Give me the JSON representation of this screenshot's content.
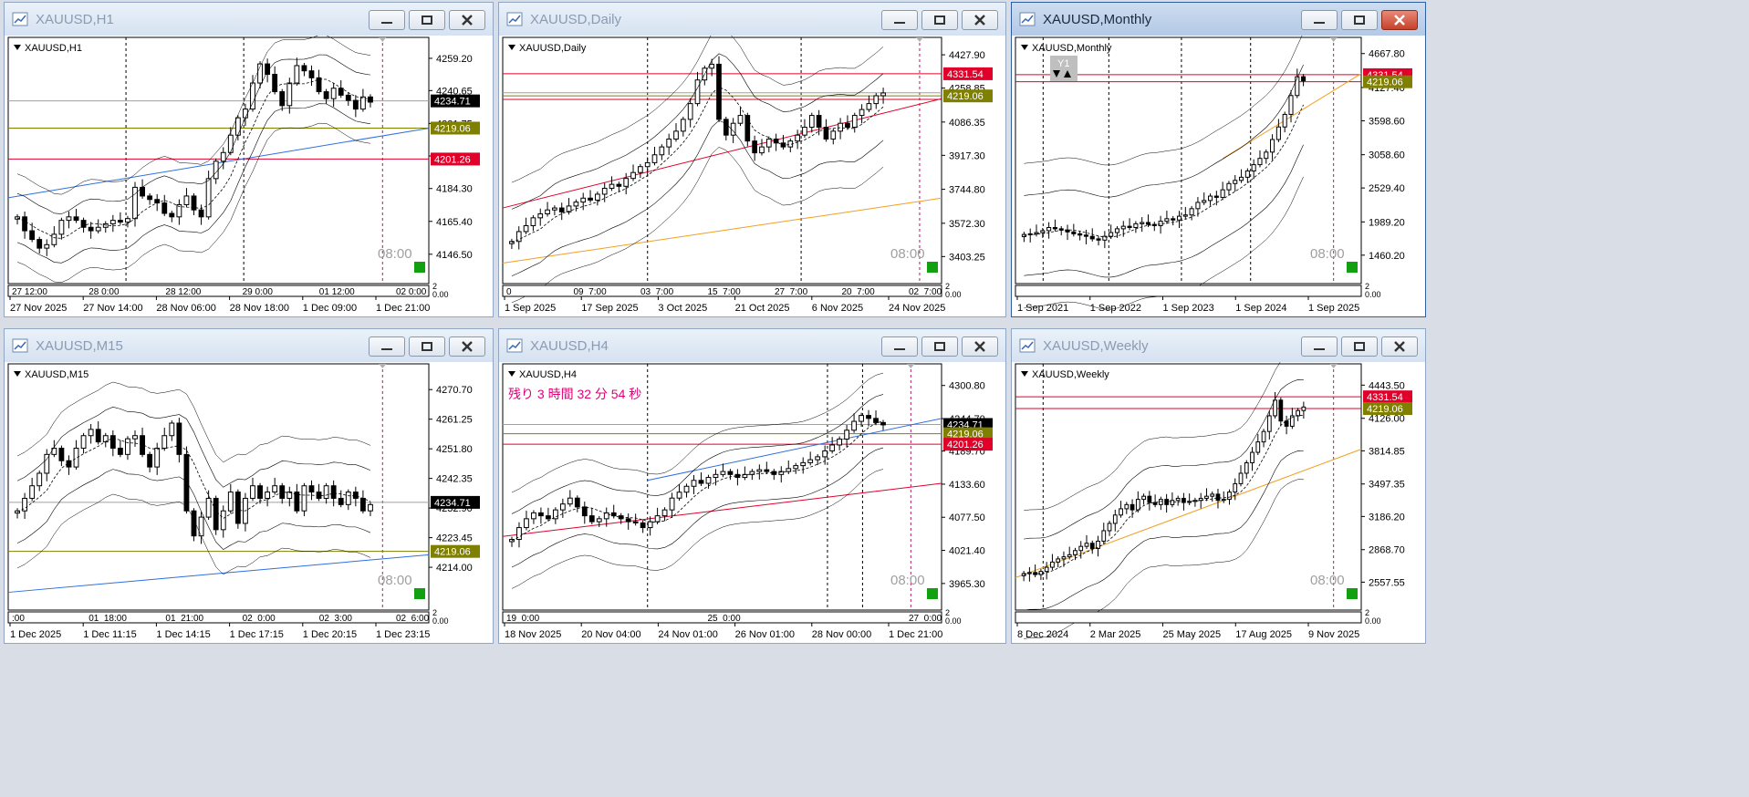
{
  "colors": {
    "bg": "#ffffff",
    "candle": "#000000",
    "support": "#808000",
    "resistance": "#e0002a",
    "trend_blue": "#2f6fe0",
    "trend_orange": "#f0a020",
    "trend_red": "#e0002a",
    "current": "#000000",
    "pink": "#e0007a",
    "accent_green": "#10a010",
    "accent_gray": "#a0a0a0"
  },
  "windows": [
    {
      "key": "h1",
      "title": "XAUUSD,H1",
      "active": false,
      "label": "XAUUSD,H1",
      "ymin": 4138,
      "ymax": 4266,
      "price_labels": [
        "4259.20",
        "4240.65",
        "4221.75",
        "4203.05",
        "4184.30",
        "4165.40",
        "4146.50"
      ],
      "price_ticks": [
        4259.2,
        4240.65,
        4221.75,
        4203.05,
        4184.3,
        4165.4,
        4146.5
      ],
      "markers": [
        {
          "text": "4234.71",
          "value": 4234.71,
          "type": "current"
        },
        {
          "text": "4219.06",
          "value": 4219.06,
          "type": "support"
        },
        {
          "text": "4201.26",
          "value": 4201.26,
          "type": "resistance"
        }
      ],
      "hlines": [
        {
          "value": 4219.06,
          "type": "support"
        },
        {
          "value": 4201.26,
          "type": "resistance"
        },
        {
          "value": 4234.71,
          "type": "gray"
        }
      ],
      "trendlines": [
        {
          "type": "blue",
          "y1": 4179,
          "y2": 4219
        }
      ],
      "bb": {
        "amp": 0.11
      },
      "date_labels": [
        "27 Nov 2025",
        "27 Nov 14:00",
        "28 Nov 06:00",
        "28 Nov 18:00",
        "1 Dec 09:00",
        "1 Dec 21:00"
      ],
      "inner_labels": [
        "27 12:00",
        "28 0:00",
        "28 12:00",
        "29 0:00",
        "01 12:00",
        "02 0:00"
      ],
      "scale_bottom": "0.00",
      "scale_top_small": "2",
      "time_stamp": "08:00",
      "vlines": [
        0.28,
        0.56,
        0.89
      ],
      "path": [
        4168,
        4160,
        4155,
        4150,
        4152,
        4158,
        4166,
        4168,
        4166,
        4162,
        4160,
        4162,
        4164,
        4166,
        4165,
        4167,
        4185,
        4180,
        4178,
        4176,
        4170,
        4168,
        4175,
        4180,
        4172,
        4168,
        4190,
        4200,
        4205,
        4215,
        4225,
        4230,
        4245,
        4256,
        4250,
        4240,
        4232,
        4245,
        4255,
        4252,
        4248,
        4240,
        4236,
        4242,
        4238,
        4235,
        4230,
        4237,
        4234
      ],
      "title_overlay": ""
    },
    {
      "key": "daily",
      "title": "XAUUSD,Daily",
      "active": false,
      "label": "XAUUSD,Daily",
      "ymin": 3340,
      "ymax": 4470,
      "price_labels": [
        "4427.90",
        "4258.85",
        "4086.35",
        "3917.30",
        "3744.80",
        "3572.30",
        "3403.25"
      ],
      "price_ticks": [
        4427.9,
        4258.85,
        4086.35,
        3917.3,
        3744.8,
        3572.3,
        3403.25
      ],
      "markers": [
        {
          "text": "4331.54",
          "value": 4331.54,
          "type": "resistance"
        },
        {
          "text": "4219.06",
          "value": 4219.06,
          "type": "support"
        }
      ],
      "hlines": [
        {
          "value": 4331.54,
          "type": "resistance"
        },
        {
          "value": 4219.06,
          "type": "support"
        },
        {
          "value": 4201.26,
          "type": "resistance"
        },
        {
          "value": 4234.71,
          "type": "gray"
        }
      ],
      "trendlines": [
        {
          "type": "red",
          "y1": 3650,
          "y2": 4205
        },
        {
          "type": "orange",
          "y1": 3370,
          "y2": 3700
        }
      ],
      "bb": {
        "amp": 0.15
      },
      "date_labels": [
        "1 Sep 2025",
        "17 Sep 2025",
        "3 Oct 2025",
        "21 Oct 2025",
        "6 Nov 2025",
        "24 Nov 2025"
      ],
      "inner_labels": [
        "0",
        "09_7:00",
        "03_7:00",
        "15_7:00",
        "27_7:00",
        "20_7:00",
        "02_7:00"
      ],
      "scale_bottom": "0.00",
      "scale_top_small": "2",
      "time_stamp": "08:00",
      "vlines": [
        0.33,
        0.68,
        0.95
      ],
      "path": [
        3480,
        3530,
        3560,
        3600,
        3620,
        3640,
        3650,
        3630,
        3660,
        3680,
        3700,
        3690,
        3720,
        3750,
        3770,
        3760,
        3800,
        3830,
        3860,
        3880,
        3920,
        3960,
        4000,
        4040,
        4100,
        4180,
        4300,
        4360,
        4380,
        4100,
        4020,
        4080,
        4120,
        3990,
        3930,
        3960,
        4000,
        3980,
        3960,
        3990,
        4020,
        4060,
        4120,
        4060,
        4000,
        4040,
        4080,
        4060,
        4120,
        4150,
        4180,
        4220,
        4234
      ],
      "title_overlay": ""
    },
    {
      "key": "monthly",
      "title": "XAUUSD,Monthly",
      "active": true,
      "label": "XAUUSD,Monthly",
      "ymin": 1240,
      "ymax": 4780,
      "price_labels": [
        "4667.80",
        "4127.40",
        "3598.60",
        "3058.60",
        "2529.40",
        "1989.20",
        "1460.20"
      ],
      "price_ticks": [
        4667.8,
        4127.4,
        3598.6,
        3058.6,
        2529.4,
        1989.2,
        1460.2
      ],
      "markers": [
        {
          "text": "4331.54",
          "value": 4331.54,
          "type": "resistance"
        },
        {
          "text": "4219.06",
          "value": 4219.06,
          "type": "support"
        }
      ],
      "hlines": [
        {
          "value": 4331.54,
          "type": "resistance"
        },
        {
          "value": 4219.06,
          "type": "resistance"
        }
      ],
      "trendlines": [
        {
          "type": "orange_steep",
          "y1": 3000,
          "y2": 4350
        }
      ],
      "bb": {
        "amp": 0.18
      },
      "date_labels": [
        "1 Sep 2021",
        "1 Sep 2022",
        "1 Sep 2023",
        "1 Sep 2024",
        "1 Sep 2025"
      ],
      "inner_labels": [],
      "scale_bottom": "0.00",
      "scale_top_small": "2",
      "time_stamp": "08:00",
      "vlines": [
        0.08,
        0.27,
        0.48,
        0.68,
        0.92
      ],
      "path": [
        1790,
        1800,
        1820,
        1850,
        1900,
        1880,
        1860,
        1830,
        1800,
        1780,
        1760,
        1720,
        1700,
        1760,
        1820,
        1880,
        1920,
        1900,
        1960,
        1980,
        1950,
        1930,
        2000,
        2040,
        2020,
        2080,
        2100,
        2200,
        2300,
        2330,
        2400,
        2380,
        2500,
        2600,
        2650,
        2700,
        2800,
        2900,
        3000,
        3100,
        3300,
        3500,
        3700,
        4000,
        4300,
        4234
      ],
      "title_overlay": "Y1"
    },
    {
      "key": "m15",
      "title": "XAUUSD,M15",
      "active": false,
      "label": "XAUUSD,M15",
      "ymin": 4205,
      "ymax": 4276,
      "price_labels": [
        "4270.70",
        "4261.25",
        "4251.80",
        "4242.35",
        "4232.90",
        "4223.45",
        "4214.00"
      ],
      "price_ticks": [
        4270.7,
        4261.25,
        4251.8,
        4242.35,
        4232.9,
        4223.45,
        4214.0
      ],
      "markers": [
        {
          "text": "4234.71",
          "value": 4234.71,
          "type": "current"
        },
        {
          "text": "4219.06",
          "value": 4219.06,
          "type": "support"
        }
      ],
      "hlines": [
        {
          "value": 4219.06,
          "type": "support"
        },
        {
          "value": 4234.71,
          "type": "gray"
        }
      ],
      "trendlines": [
        {
          "type": "blue",
          "y1": 4206,
          "y2": 4218
        }
      ],
      "bb": {
        "amp": 0.14
      },
      "date_labels": [
        "1 Dec 2025",
        "1 Dec 11:15",
        "1 Dec 14:15",
        "1 Dec 17:15",
        "1 Dec 20:15",
        "1 Dec 23:15"
      ],
      "inner_labels": [
        ":00",
        "01_18:00",
        "01_21:00",
        "02_0:00",
        "02_3:00",
        "02_6:00"
      ],
      "scale_bottom": "0.00",
      "scale_top_small": "2",
      "time_stamp": "08:00",
      "vlines": [
        0.89
      ],
      "path": [
        4232,
        4236,
        4240,
        4244,
        4250,
        4252,
        4248,
        4246,
        4252,
        4256,
        4258,
        4254,
        4256,
        4252,
        4250,
        4255,
        4256,
        4250,
        4246,
        4252,
        4256,
        4260,
        4250,
        4232,
        4224,
        4230,
        4236,
        4226,
        4232,
        4238,
        4228,
        4236,
        4240,
        4236,
        4238,
        4240,
        4236,
        4238,
        4232,
        4240,
        4238,
        4236,
        4240,
        4236,
        4234,
        4238,
        4236,
        4232,
        4234
      ],
      "title_overlay": ""
    },
    {
      "key": "h4",
      "title": "XAUUSD,H4",
      "active": false,
      "label": "XAUUSD,H4",
      "ymin": 3945,
      "ymax": 4322,
      "price_labels": [
        "4300.80",
        "4244.70",
        "4189.70",
        "4133.60",
        "4077.50",
        "4021.40",
        "3965.30"
      ],
      "price_ticks": [
        4300.8,
        4244.7,
        4189.7,
        4133.6,
        4077.5,
        4021.4,
        3965.3
      ],
      "markers": [
        {
          "text": "4234.71",
          "value": 4234.71,
          "type": "current"
        },
        {
          "text": "4219.06",
          "value": 4219.06,
          "type": "support"
        },
        {
          "text": "4201.26",
          "value": 4201.26,
          "type": "resistance"
        }
      ],
      "hlines": [
        {
          "value": 4219.06,
          "type": "support"
        },
        {
          "value": 4201.26,
          "type": "resistance"
        },
        {
          "value": 4234.71,
          "type": "gray"
        }
      ],
      "trendlines": [
        {
          "type": "red",
          "y1": 4045,
          "y2": 4135
        },
        {
          "type": "blue_short",
          "y1": 4140,
          "y2": 4245
        }
      ],
      "bb": {
        "amp": 0.12
      },
      "date_labels": [
        "18 Nov 2025",
        "20 Nov 04:00",
        "24 Nov 01:00",
        "26 Nov 01:00",
        "28 Nov 00:00",
        "1 Dec 21:00"
      ],
      "inner_labels": [
        "19_0:00",
        "25_0:00",
        "27_0:00"
      ],
      "scale_bottom": "0.00",
      "scale_top_small": "2",
      "time_stamp": "08:00",
      "vlines": [
        0.33,
        0.74,
        0.82,
        0.93
      ],
      "path": [
        4040,
        4060,
        4075,
        4085,
        4080,
        4075,
        4090,
        4100,
        4110,
        4095,
        4080,
        4070,
        4075,
        4085,
        4080,
        4075,
        4070,
        4068,
        4060,
        4070,
        4080,
        4090,
        4110,
        4120,
        4130,
        4140,
        4135,
        4145,
        4150,
        4155,
        4150,
        4145,
        4150,
        4155,
        4158,
        4155,
        4150,
        4155,
        4160,
        4165,
        4170,
        4175,
        4180,
        4190,
        4200,
        4210,
        4225,
        4240,
        4250,
        4245,
        4238,
        4234
      ],
      "title_overlay": "残り 3 時間 32 分 54 秒"
    },
    {
      "key": "weekly",
      "title": "XAUUSD,Weekly",
      "active": false,
      "label": "XAUUSD,Weekly",
      "ymin": 2430,
      "ymax": 4560,
      "price_labels": [
        "4443.50",
        "4126.00",
        "3814.85",
        "3497.35",
        "3186.20",
        "2868.70",
        "2557.55"
      ],
      "price_ticks": [
        4443.5,
        4126.0,
        3814.85,
        3497.35,
        3186.2,
        2868.7,
        2557.55
      ],
      "markers": [
        {
          "text": "4331.54",
          "value": 4331.54,
          "type": "resistance"
        },
        {
          "text": "4219.06",
          "value": 4219.06,
          "type": "support"
        }
      ],
      "hlines": [
        {
          "value": 4331.54,
          "type": "resistance"
        },
        {
          "value": 4219.06,
          "type": "resistance"
        }
      ],
      "trendlines": [
        {
          "type": "orange",
          "y1": 2600,
          "y2": 3830
        }
      ],
      "bb": {
        "amp": 0.16
      },
      "date_labels": [
        "8 Dec 2024",
        "2 Mar 2025",
        "25 May 2025",
        "17 Aug 2025",
        "9 Nov 2025"
      ],
      "inner_labels": [],
      "scale_bottom": "0.00",
      "scale_top_small": "2",
      "time_stamp": "08:00",
      "vlines": [
        0.08,
        0.92
      ],
      "path": [
        2640,
        2650,
        2630,
        2660,
        2700,
        2750,
        2780,
        2800,
        2820,
        2860,
        2900,
        2930,
        2880,
        2950,
        3050,
        3120,
        3200,
        3260,
        3300,
        3250,
        3350,
        3380,
        3320,
        3300,
        3350,
        3300,
        3340,
        3360,
        3320,
        3330,
        3340,
        3360,
        3380,
        3400,
        3340,
        3350,
        3420,
        3500,
        3600,
        3700,
        3800,
        3900,
        4000,
        4150,
        4300,
        4100,
        4050,
        4150,
        4200,
        4234
      ],
      "title_overlay": ""
    }
  ]
}
